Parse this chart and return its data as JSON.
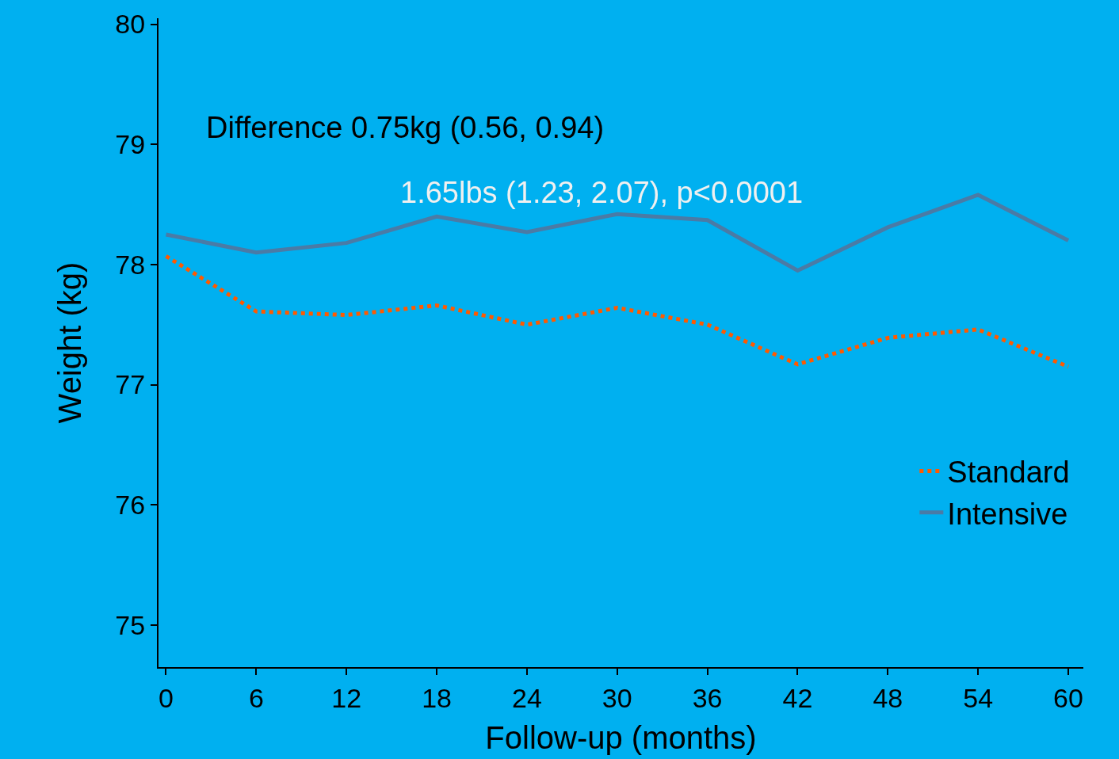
{
  "chart_data": {
    "type": "line",
    "xlabel": "Follow-up (months)",
    "ylabel": "Weight (kg)",
    "x": [
      0,
      6,
      12,
      18,
      24,
      30,
      36,
      42,
      48,
      54,
      60
    ],
    "series": [
      {
        "name": "Standard",
        "color": "#ff5a00",
        "line_style": "dotted",
        "values": [
          78.07,
          77.61,
          77.58,
          77.66,
          77.5,
          77.64,
          77.5,
          77.17,
          77.39,
          77.46,
          77.15
        ]
      },
      {
        "name": "Intensive",
        "color": "#4a7ba6",
        "line_style": "solid",
        "values": [
          78.25,
          78.1,
          78.18,
          78.4,
          78.27,
          78.42,
          78.37,
          77.95,
          78.31,
          78.58,
          78.2
        ]
      }
    ],
    "xlim": [
      -0.5,
      61
    ],
    "xticks": [
      0,
      6,
      12,
      18,
      24,
      30,
      36,
      42,
      48,
      54,
      60
    ],
    "ylim": [
      74.65,
      80.05
    ],
    "yticks": [
      75,
      76,
      77,
      78,
      79,
      80
    ],
    "annotations": [
      "Difference 0.75kg (0.56, 0.94)",
      "1.65lbs (1.23, 2.07), p<0.0001"
    ],
    "grid": false,
    "legend": "bottom right",
    "marker": "none"
  }
}
